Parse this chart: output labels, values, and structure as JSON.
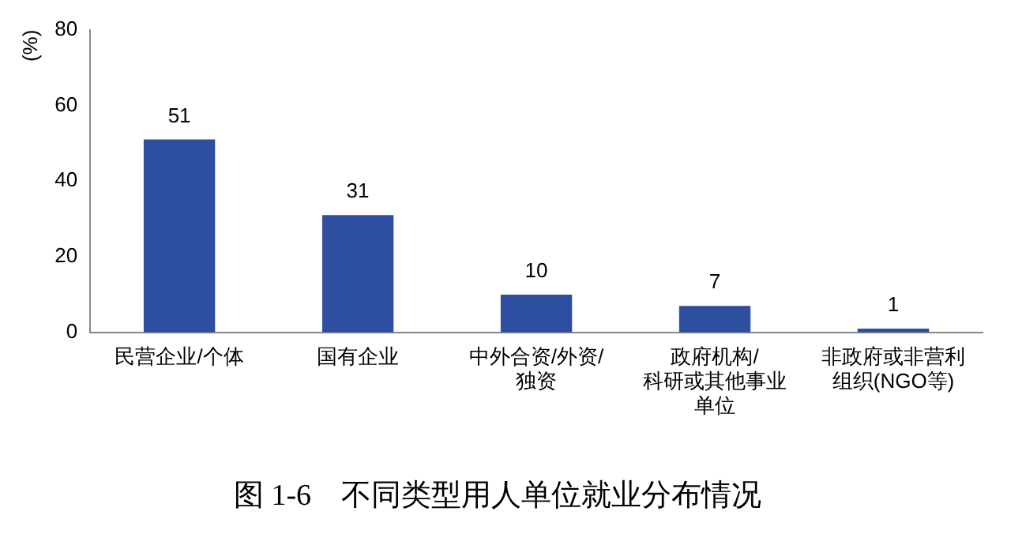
{
  "chart_data": {
    "type": "bar",
    "title": "图 1-6　不同类型用人单位就业分布情况",
    "ylabel": "(%)",
    "categories": [
      "民营企业/个体",
      "国有企业",
      "中外合资/外资/独资",
      "政府机构/科研或其他事业单位",
      "非政府或非营利组织(NGO等)"
    ],
    "values": [
      51,
      31,
      10,
      7,
      1
    ],
    "color": "#2e4f9f",
    "ylim": [
      0,
      80
    ],
    "yticks": [
      0,
      20,
      40,
      60,
      80
    ],
    "grid": false,
    "data_labels": true,
    "legend": false
  }
}
